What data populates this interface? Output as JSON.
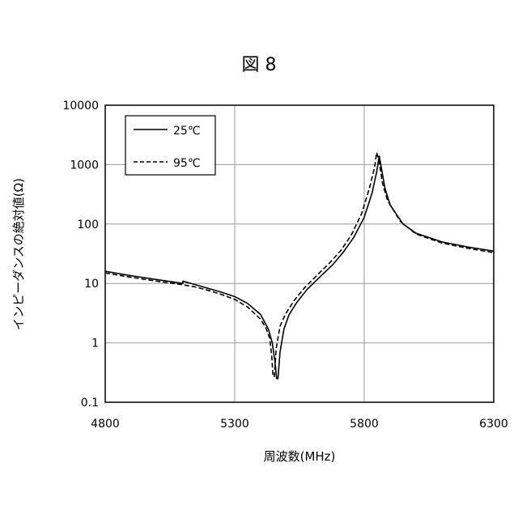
{
  "figure_label": "図 8",
  "chart_data": {
    "type": "line",
    "xlabel": "周波数(MHz)",
    "ylabel": "インピーダンスの絶対値(Ω)",
    "xlim": [
      4800,
      6300
    ],
    "ylim": [
      0.1,
      10000
    ],
    "yscale": "log",
    "x_ticks": [
      4800,
      5300,
      5800,
      6300
    ],
    "x_tick_labels": [
      "4800",
      "5300",
      "5800",
      "6300"
    ],
    "y_ticks": [
      0.1,
      1,
      10,
      100,
      1000,
      10000
    ],
    "y_tick_labels": [
      "0.1",
      "1",
      "10",
      "100",
      "1000",
      "10000"
    ],
    "grid": true,
    "legend_position": "top-left",
    "series": [
      {
        "name": "25℃",
        "style": "solid",
        "color": "#000000",
        "points": [
          [
            4800,
            16
          ],
          [
            4900,
            13.5
          ],
          [
            5000,
            11.6
          ],
          [
            5100,
            10.0
          ],
          [
            5100,
            10.9
          ],
          [
            5150,
            9.5
          ],
          [
            5200,
            8.2
          ],
          [
            5250,
            7.1
          ],
          [
            5300,
            6.0
          ],
          [
            5350,
            4.6
          ],
          [
            5400,
            3.0
          ],
          [
            5430,
            1.7
          ],
          [
            5445,
            1.0
          ],
          [
            5455,
            0.5
          ],
          [
            5462,
            0.25
          ],
          [
            5467,
            0.25
          ],
          [
            5475,
            0.7
          ],
          [
            5490,
            1.7
          ],
          [
            5510,
            3.0
          ],
          [
            5540,
            4.8
          ],
          [
            5580,
            8.0
          ],
          [
            5630,
            13
          ],
          [
            5680,
            21
          ],
          [
            5720,
            34
          ],
          [
            5760,
            60
          ],
          [
            5800,
            130
          ],
          [
            5830,
            330
          ],
          [
            5848,
            750
          ],
          [
            5858,
            1400
          ],
          [
            5868,
            800
          ],
          [
            5880,
            400
          ],
          [
            5900,
            210
          ],
          [
            5950,
            100
          ],
          [
            6000,
            70
          ],
          [
            6100,
            50
          ],
          [
            6200,
            41
          ],
          [
            6300,
            35
          ]
        ]
      },
      {
        "name": "95℃",
        "style": "dashed",
        "color": "#000000",
        "points": [
          [
            4800,
            15
          ],
          [
            4900,
            12.7
          ],
          [
            5000,
            10.9
          ],
          [
            5100,
            9.5
          ],
          [
            5150,
            8.7
          ],
          [
            5200,
            7.6
          ],
          [
            5250,
            6.5
          ],
          [
            5300,
            5.4
          ],
          [
            5350,
            4.0
          ],
          [
            5400,
            2.5
          ],
          [
            5420,
            1.8
          ],
          [
            5435,
            1.2
          ],
          [
            5443,
            0.6
          ],
          [
            5448,
            0.27
          ],
          [
            5453,
            0.27
          ],
          [
            5460,
            0.8
          ],
          [
            5475,
            1.9
          ],
          [
            5495,
            3.0
          ],
          [
            5530,
            5.2
          ],
          [
            5570,
            8.5
          ],
          [
            5620,
            14
          ],
          [
            5670,
            23
          ],
          [
            5710,
            36
          ],
          [
            5750,
            65
          ],
          [
            5790,
            150
          ],
          [
            5820,
            400
          ],
          [
            5840,
            900
          ],
          [
            5848,
            1600
          ],
          [
            5858,
            1100
          ],
          [
            5870,
            500
          ],
          [
            5890,
            250
          ],
          [
            5940,
            110
          ],
          [
            6000,
            68
          ],
          [
            6100,
            48
          ],
          [
            6200,
            39
          ],
          [
            6300,
            33
          ]
        ]
      }
    ]
  }
}
